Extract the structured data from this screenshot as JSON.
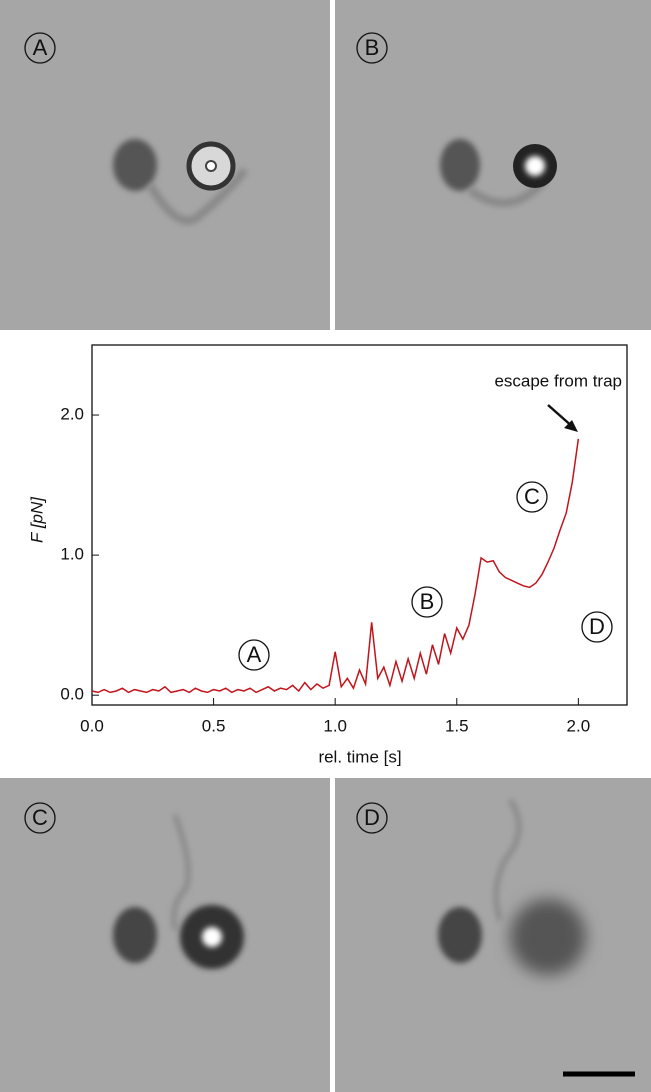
{
  "panels": [
    "A",
    "B",
    "C",
    "D"
  ],
  "chart_data": {
    "type": "line",
    "ylabel": "F [pN]",
    "xlabel": "rel. time [s]",
    "annotations": [
      "A",
      "B",
      "C",
      "D",
      "escape from trap"
    ],
    "color": "#c0151b",
    "xlim": [
      0,
      2.2
    ],
    "ylim": [
      -0.07,
      2.5
    ],
    "xticks": [
      {
        "value": 0,
        "label": "0.0"
      },
      0.5,
      {
        "value": 1,
        "label": "1.0"
      },
      1.5,
      {
        "value": 2,
        "label": "2.0"
      }
    ],
    "yticks": [
      {
        "value": 0,
        "label": "0.0"
      },
      {
        "value": 1,
        "label": "1.0"
      },
      {
        "value": 2,
        "label": "2.0"
      }
    ],
    "x": [
      0,
      0.025,
      0.05,
      0.075,
      0.1,
      0.125,
      0.15,
      0.175,
      0.2,
      0.225,
      0.25,
      0.275,
      0.3,
      0.325,
      0.35,
      0.375,
      0.4,
      0.425,
      0.45,
      0.475,
      0.5,
      0.525,
      0.55,
      0.575,
      0.6,
      0.625,
      0.65,
      0.675,
      0.7,
      0.725,
      0.75,
      0.775,
      0.8,
      0.825,
      0.85,
      0.875,
      0.9,
      0.925,
      0.95,
      0.975,
      1.0,
      1.025,
      1.05,
      1.075,
      1.1,
      1.125,
      1.15,
      1.175,
      1.2,
      1.225,
      1.25,
      1.275,
      1.3,
      1.325,
      1.35,
      1.375,
      1.4,
      1.425,
      1.45,
      1.475,
      1.5,
      1.525,
      1.55,
      1.575,
      1.6,
      1.625,
      1.65,
      1.675,
      1.7,
      1.725,
      1.75,
      1.775,
      1.8,
      1.825,
      1.85,
      1.875,
      1.9,
      1.925,
      1.95,
      1.975,
      2.0
    ],
    "values": [
      0.03,
      0.02,
      0.04,
      0.02,
      0.03,
      0.05,
      0.02,
      0.04,
      0.03,
      0.02,
      0.04,
      0.03,
      0.06,
      0.02,
      0.03,
      0.04,
      0.02,
      0.05,
      0.03,
      0.02,
      0.04,
      0.03,
      0.05,
      0.02,
      0.04,
      0.03,
      0.05,
      0.02,
      0.04,
      0.06,
      0.03,
      0.05,
      0.04,
      0.07,
      0.03,
      0.09,
      0.04,
      0.08,
      0.05,
      0.07,
      0.31,
      0.06,
      0.12,
      0.05,
      0.18,
      0.08,
      0.52,
      0.12,
      0.2,
      0.07,
      0.24,
      0.1,
      0.26,
      0.12,
      0.3,
      0.15,
      0.36,
      0.22,
      0.44,
      0.3,
      0.48,
      0.4,
      0.5,
      0.72,
      0.98,
      0.95,
      0.96,
      0.88,
      0.84,
      0.82,
      0.8,
      0.78,
      0.77,
      0.8,
      0.86,
      0.95,
      1.05,
      1.18,
      1.3,
      1.52,
      1.83
    ]
  }
}
